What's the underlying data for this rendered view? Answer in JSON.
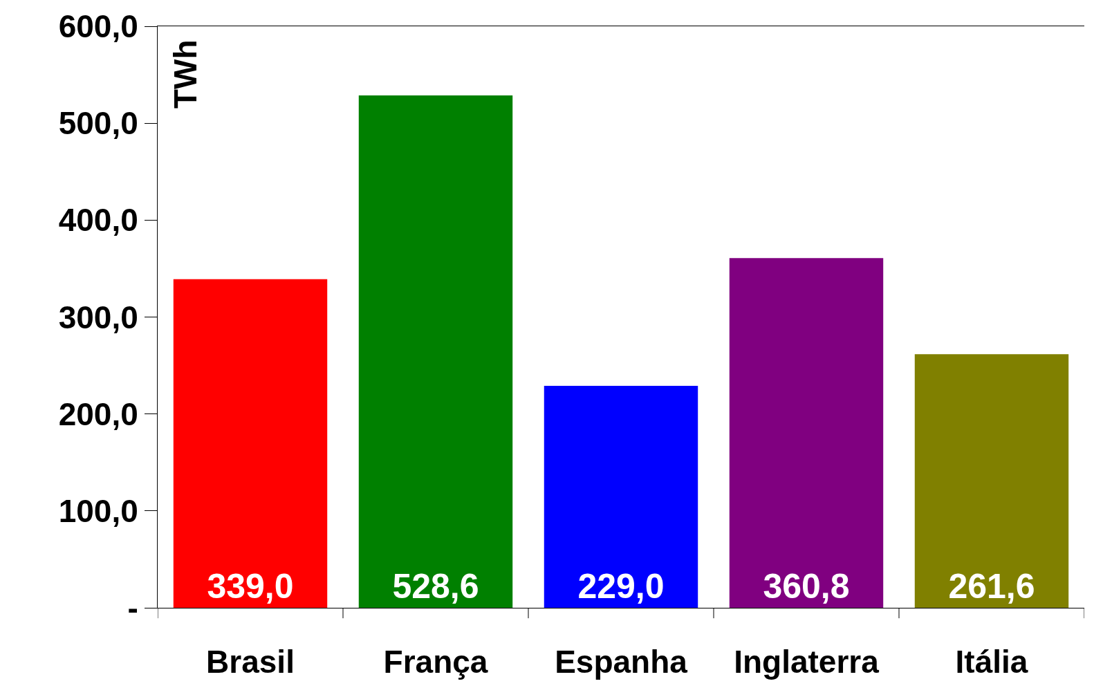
{
  "chart_data": {
    "type": "bar",
    "ylabel": "TWh",
    "categories": [
      "Brasil",
      "França",
      "Espanha",
      "Inglaterra",
      "Itália"
    ],
    "values": [
      339.0,
      528.6,
      229.0,
      360.8,
      261.6
    ],
    "colors": [
      "#ff0000",
      "#008000",
      "#0000ff",
      "#800080",
      "#808000"
    ],
    "value_labels": [
      "339,0",
      "528,6",
      "229,0",
      "360,8",
      "261,6"
    ],
    "ylim": [
      0,
      600
    ],
    "yticks": [
      {
        "value": 0,
        "label": "-"
      },
      {
        "value": 100,
        "label": "100,0"
      },
      {
        "value": 200,
        "label": "200,0"
      },
      {
        "value": 300,
        "label": "300,0"
      },
      {
        "value": 400,
        "label": "400,0"
      },
      {
        "value": 500,
        "label": "500,0"
      },
      {
        "value": 600,
        "label": "600,0"
      }
    ],
    "legend": false
  }
}
